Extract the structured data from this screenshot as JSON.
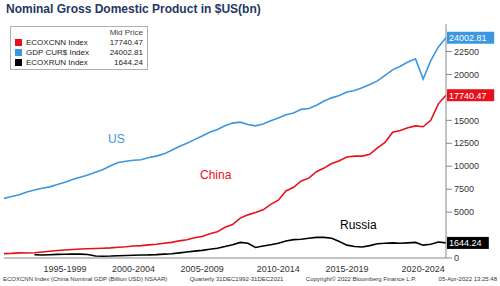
{
  "chart_data": {
    "type": "line",
    "title": "Nominal Gross Domestic Product in $US(bn)",
    "legend_title": "Mid Price",
    "legend": "upper left",
    "grid": false,
    "categories": [
      null,
      null,
      null,
      null,
      null,
      null,
      null,
      null,
      "1995-1999",
      null,
      null,
      null,
      null,
      null,
      null,
      null,
      null,
      "2000-2004",
      null,
      null,
      null,
      null,
      null,
      null,
      null,
      null,
      "2005-2009",
      null,
      null,
      null,
      null,
      null,
      null,
      null,
      null,
      null,
      "2010-2014",
      null,
      null,
      null,
      null,
      null,
      null,
      null,
      null,
      "2015-2019",
      null,
      null,
      null,
      null,
      null,
      null,
      null,
      null,
      null,
      "2020-2024",
      null,
      null,
      null
    ],
    "ylim": [
      0,
      25500
    ],
    "yticks": [
      0,
      5000,
      7500,
      10000,
      12500,
      15000,
      20000,
      22500
    ],
    "series": [
      {
        "name": "ECOXCNN Index",
        "color": "#e8101a",
        "values": [
          480,
          500,
          560,
          540,
          580,
          660,
          740,
          820,
          880,
          930,
          980,
          1000,
          1030,
          1060,
          1100,
          1170,
          1220,
          1300,
          1350,
          1430,
          1490,
          1600,
          1700,
          1870,
          1990,
          2200,
          2350,
          2650,
          2850,
          3350,
          3650,
          4350,
          4700,
          4950,
          5250,
          5850,
          6300,
          7300,
          7700,
          8400,
          8700,
          9400,
          9800,
          10300,
          10600,
          11000,
          11100,
          11100,
          11300,
          12000,
          12600,
          13700,
          13900,
          14200,
          14400,
          14300,
          15000,
          16800,
          17740.47
        ]
      },
      {
        "name": "GDP CUR$ Index",
        "color": "#3a97e0",
        "values": [
          6500,
          6700,
          6900,
          7200,
          7400,
          7600,
          7750,
          8000,
          8250,
          8550,
          8800,
          9050,
          9350,
          9650,
          10050,
          10400,
          10550,
          10650,
          10700,
          10950,
          11100,
          11350,
          11750,
          12150,
          12500,
          12900,
          13300,
          13700,
          14000,
          14400,
          14700,
          14800,
          14550,
          14400,
          14600,
          14950,
          15250,
          15600,
          15800,
          16200,
          16300,
          16650,
          17100,
          17450,
          17700,
          18100,
          18250,
          18550,
          18900,
          19300,
          19900,
          20500,
          20900,
          21350,
          21700,
          19500,
          21500,
          23000,
          24002.81
        ]
      },
      {
        "name": "ECOXRUN Index",
        "color": "#000000",
        "values": [
          null,
          null,
          null,
          null,
          350,
          330,
          360,
          400,
          410,
          420,
          420,
          380,
          220,
          190,
          210,
          250,
          280,
          300,
          330,
          340,
          370,
          420,
          470,
          560,
          650,
          750,
          830,
          960,
          1070,
          1250,
          1450,
          1700,
          1600,
          1150,
          1300,
          1450,
          1600,
          1850,
          2000,
          2050,
          2150,
          2250,
          2250,
          2150,
          1800,
          1400,
          1250,
          1200,
          1350,
          1550,
          1600,
          1650,
          1600,
          1650,
          1700,
          1400,
          1500,
          1750,
          1644.24
        ]
      }
    ],
    "annotations": [
      "US",
      "China",
      "Russia"
    ],
    "footer": [
      "ECOXCNN Index (China Nominal GDP (Billion USD) NSAAR)",
      "Quarterly 31DEC1992-31DEC2021",
      "Copyright© 2022 Bloomberg Finance L.P.",
      "05-Apr-2022 13:25:48"
    ]
  }
}
